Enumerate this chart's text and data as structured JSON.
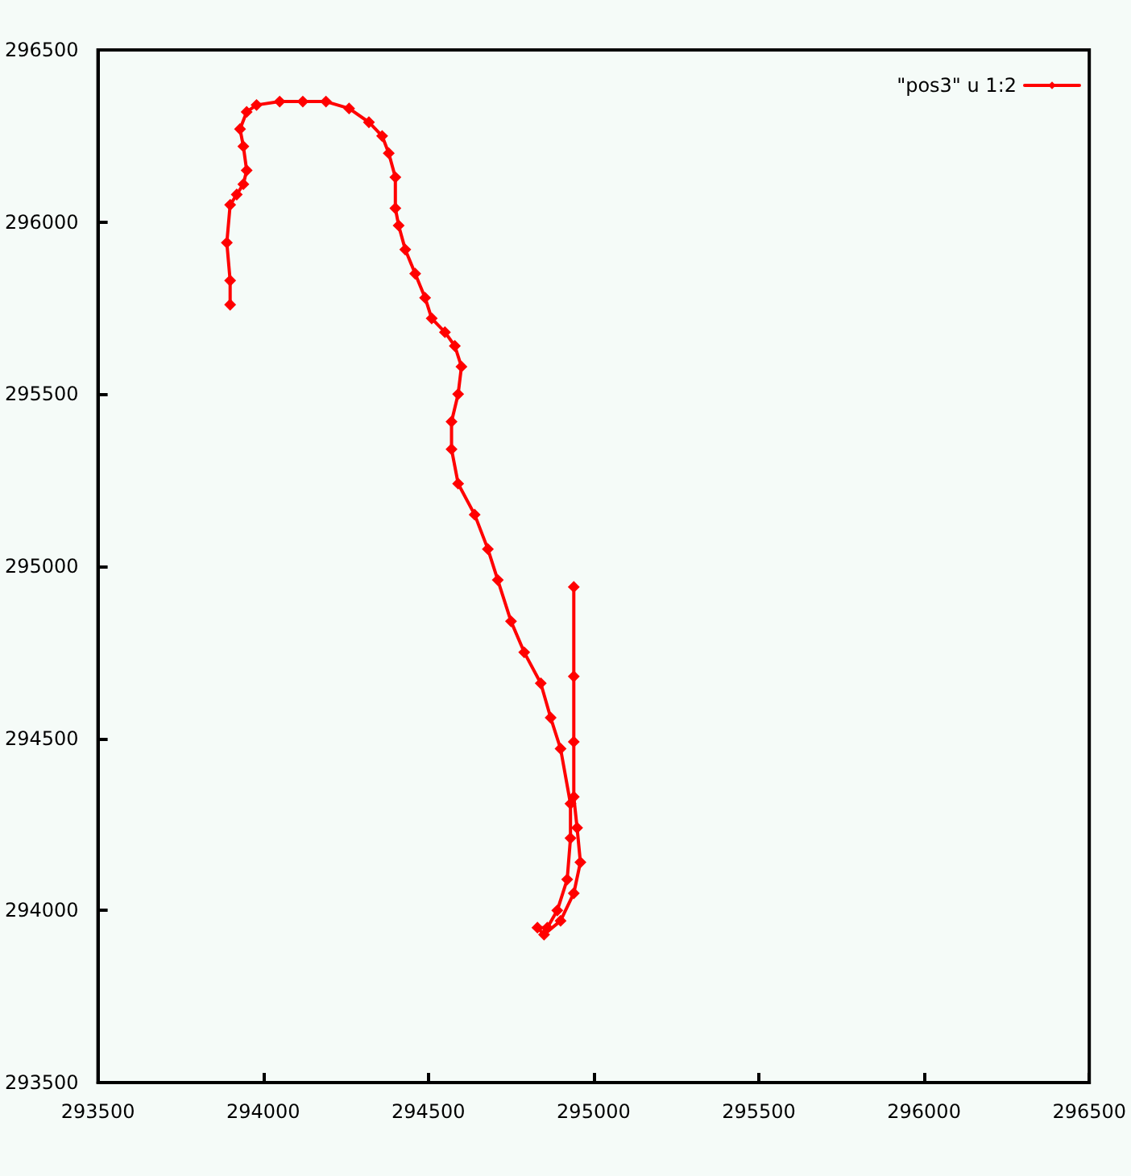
{
  "chart_data": {
    "type": "line",
    "legend": "top right",
    "marker": "diamond",
    "line_style": "solid",
    "grid": false,
    "xlim": [
      293500,
      296500
    ],
    "xticks": [
      293500,
      294000,
      294500,
      295000,
      295500,
      296000,
      296500
    ],
    "ylim": [
      293500,
      296500
    ],
    "yticks": [
      293500,
      294000,
      294500,
      295000,
      295500,
      296000,
      296500
    ],
    "series": [
      {
        "name": "\"pos3\" u 1:2",
        "color": "#ff0000",
        "x": [
          293900,
          293900,
          293890,
          293900,
          293920,
          293940,
          293950,
          293940,
          293930,
          293950,
          293980,
          294050,
          294120,
          294190,
          294260,
          294320,
          294360,
          294380,
          294400,
          294400,
          294410,
          294430,
          294460,
          294490,
          294510,
          294550,
          294580,
          294600,
          294590,
          294570,
          294570,
          294590,
          294640,
          294680,
          294710,
          294750,
          294790,
          294840,
          294870,
          294900,
          294930,
          294930,
          294920,
          294890,
          294860,
          294830,
          294850,
          294900,
          294940,
          294960,
          294950,
          294940,
          294940,
          294940,
          294940
        ],
        "values": [
          295760,
          295830,
          295940,
          296050,
          296080,
          296110,
          296150,
          296220,
          296270,
          296320,
          296340,
          296350,
          296350,
          296350,
          296330,
          296290,
          296250,
          296200,
          296130,
          296040,
          295990,
          295920,
          295850,
          295780,
          295720,
          295680,
          295640,
          295580,
          295500,
          295420,
          295340,
          295240,
          295150,
          295050,
          294960,
          294840,
          294750,
          294660,
          294560,
          294470,
          294310,
          294210,
          294090,
          294000,
          293950,
          293950,
          293930,
          293970,
          294050,
          294140,
          294240,
          294330,
          294490,
          294680,
          294940
        ]
      }
    ]
  }
}
